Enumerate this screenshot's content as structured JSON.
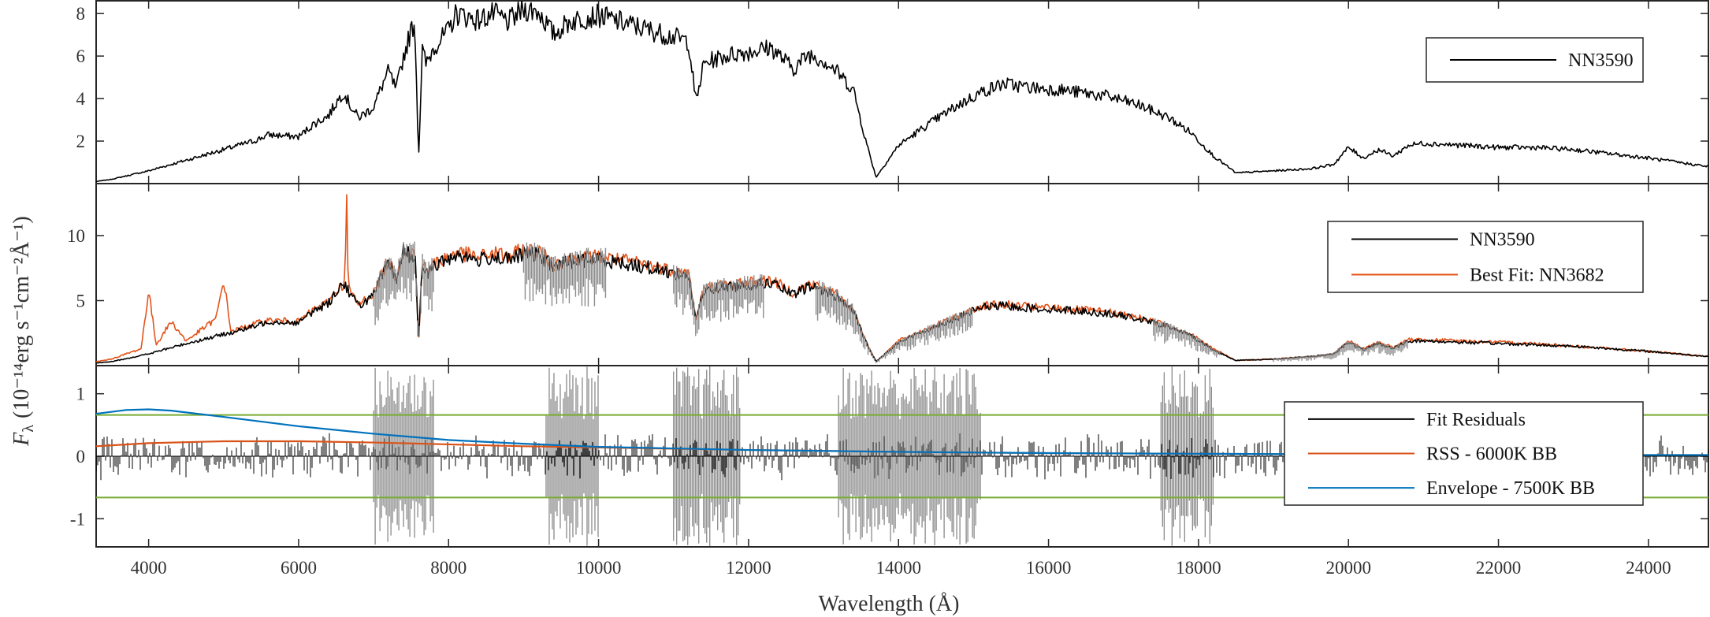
{
  "chart_data": {
    "type": "line",
    "xlabel": "Wavelength (Å)",
    "ylabel": "F",
    "ylabel_sub": "λ",
    "ylabel_units": "(10⁻¹⁴erg s⁻¹cm⁻²Å⁻¹)",
    "xlim": [
      3300,
      24800
    ],
    "x_ticks": [
      4000,
      6000,
      8000,
      10000,
      12000,
      14000,
      16000,
      18000,
      20000,
      22000,
      24000
    ],
    "grid": false,
    "panels": [
      {
        "id": "top",
        "ylim": [
          0,
          8.6
        ],
        "y_ticks": [
          2,
          4,
          6,
          8
        ],
        "legend_position": "top-right",
        "series": [
          {
            "name": "NN3590",
            "color": "#000000",
            "x": [
              3300,
              3500,
              4000,
              4500,
              5000,
              5400,
              5600,
              6000,
              6200,
              6400,
              6500,
              6600,
              6700,
              6800,
              7000,
              7100,
              7200,
              7300,
              7400,
              7500,
              7550,
              7600,
              7650,
              7700,
              7800,
              8000,
              8100,
              8200,
              8400,
              8600,
              8800,
              9000,
              9200,
              9400,
              9600,
              9800,
              10000,
              10400,
              10800,
              11000,
              11200,
              11300,
              11400,
              11500,
              11800,
              12000,
              12300,
              12600,
              12800,
              13000,
              13200,
              13400,
              13550,
              13700,
              14000,
              14400,
              14800,
              15100,
              15400,
              15800,
              16200,
              16800,
              17200,
              17600,
              17900,
              18200,
              18500,
              19000,
              19500,
              19800,
              20000,
              20200,
              20400,
              20600,
              20800,
              21000,
              21500,
              22000,
              22500,
              23000,
              23500,
              24000,
              24400,
              24800
            ],
            "y": [
              0.1,
              0.2,
              0.6,
              1.1,
              1.6,
              2.0,
              2.3,
              2.2,
              2.8,
              3.2,
              3.8,
              4.3,
              3.6,
              3.1,
              3.6,
              4.5,
              5.3,
              4.4,
              6.0,
              7.2,
              7.6,
              1.2,
              6.3,
              5.6,
              6.4,
              7.2,
              8.0,
              7.9,
              7.7,
              8.0,
              7.6,
              8.2,
              8.1,
              7.0,
              7.6,
              7.8,
              7.9,
              7.5,
              7.1,
              6.9,
              6.7,
              3.8,
              5.6,
              5.8,
              6.1,
              6.2,
              6.4,
              5.4,
              6.1,
              5.8,
              5.2,
              4.4,
              2.2,
              0.3,
              1.8,
              2.8,
              3.7,
              4.3,
              4.7,
              4.5,
              4.4,
              4.1,
              3.7,
              3.1,
              2.4,
              1.3,
              0.5,
              0.6,
              0.7,
              0.9,
              1.7,
              1.2,
              1.6,
              1.3,
              1.8,
              1.9,
              1.8,
              1.7,
              1.7,
              1.6,
              1.4,
              1.2,
              1.0,
              0.8
            ]
          }
        ]
      },
      {
        "id": "middle",
        "ylim": [
          0,
          14
        ],
        "y_ticks": [
          5,
          10
        ],
        "legend_position": "top-right",
        "series": [
          {
            "name": "NN3590",
            "color": "#000000",
            "x": [
              3300,
              3500,
              4000,
              4500,
              5000,
              5400,
              5600,
              6000,
              6200,
              6400,
              6500,
              6600,
              6700,
              6800,
              7000,
              7100,
              7200,
              7300,
              7400,
              7500,
              7550,
              7600,
              7650,
              7700,
              7800,
              8000,
              8100,
              8200,
              8400,
              8600,
              8800,
              9000,
              9200,
              9400,
              9600,
              9800,
              10000,
              10400,
              10800,
              11000,
              11200,
              11300,
              11400,
              11500,
              11800,
              12000,
              12300,
              12600,
              12800,
              13000,
              13200,
              13400,
              13550,
              13700,
              14000,
              14400,
              14800,
              15100,
              15400,
              15800,
              16200,
              16800,
              17200,
              17600,
              17900,
              18200,
              18500,
              19000,
              19500,
              19800,
              20000,
              20200,
              20400,
              20600,
              20800,
              21000,
              21500,
              22000,
              22500,
              23000,
              23500,
              24000,
              24400,
              24800
            ],
            "y": [
              0.2,
              0.3,
              0.9,
              1.7,
              2.4,
              3.0,
              3.4,
              3.3,
              4.2,
              4.8,
              5.7,
              6.4,
              5.4,
              4.6,
              5.4,
              6.7,
              7.9,
              6.6,
              8.9,
              8.4,
              8.7,
              1.8,
              7.9,
              7.0,
              7.6,
              8.2,
              8.6,
              8.4,
              8.1,
              8.4,
              8.1,
              8.6,
              8.5,
              7.6,
              8.0,
              8.1,
              8.2,
              7.8,
              7.4,
              7.1,
              6.9,
              3.5,
              5.6,
              5.9,
              6.1,
              6.2,
              6.4,
              5.4,
              6.1,
              5.8,
              5.2,
              4.2,
              2.0,
              0.3,
              1.8,
              2.8,
              3.7,
              4.5,
              4.6,
              4.4,
              4.3,
              4.0,
              3.6,
              3.0,
              2.3,
              1.2,
              0.4,
              0.5,
              0.7,
              0.9,
              1.8,
              1.2,
              1.7,
              1.3,
              1.9,
              1.9,
              1.8,
              1.7,
              1.6,
              1.5,
              1.3,
              1.1,
              0.9,
              0.7
            ]
          },
          {
            "name": "Best Fit: NN3682",
            "color": "#e3541b",
            "x": [
              3300,
              3500,
              3900,
              4000,
              4100,
              4300,
              4500,
              4900,
              5000,
              5100,
              5400,
              5600,
              6000,
              6200,
              6400,
              6500,
              6620,
              6640,
              6660,
              6700,
              6800,
              7000,
              7100,
              7200,
              7300,
              7400,
              7500,
              7550,
              7600,
              7650,
              7700,
              7800,
              8000,
              8100,
              8200,
              8400,
              8600,
              8800,
              9000,
              9200,
              9400,
              9600,
              9800,
              10000,
              10400,
              10800,
              11000,
              11200,
              11300,
              11400,
              11500,
              11800,
              12000,
              12300,
              12600,
              12800,
              13000,
              13200,
              13400,
              13550,
              13700,
              14000,
              14400,
              14800,
              15100,
              15400,
              15800,
              16200,
              16800,
              17200,
              17600,
              17900,
              18200,
              18500,
              19000,
              19500,
              19800,
              20000,
              20200,
              20400,
              20600,
              20800,
              21000,
              21500,
              22000,
              22500,
              23000,
              23500,
              24000,
              24400,
              24800
            ],
            "y": [
              0.3,
              0.5,
              1.3,
              5.8,
              1.6,
              3.4,
              1.9,
              3.6,
              6.6,
              2.6,
              3.2,
              3.5,
              3.4,
              4.3,
              4.9,
              5.8,
              6.4,
              13.8,
              6.3,
              5.5,
              4.7,
              5.6,
              6.9,
              8.1,
              6.8,
              9.1,
              8.6,
              8.9,
              1.9,
              8.1,
              7.2,
              7.8,
              8.4,
              8.8,
              8.6,
              8.3,
              8.7,
              8.4,
              8.9,
              8.8,
              7.8,
              8.2,
              8.3,
              8.4,
              8.0,
              7.6,
              7.3,
              7.1,
              3.6,
              5.8,
              6.1,
              6.3,
              6.4,
              6.6,
              5.6,
              6.3,
              6.0,
              5.4,
              4.3,
              2.1,
              0.3,
              1.9,
              2.9,
              3.8,
              4.6,
              4.7,
              4.5,
              4.4,
              4.1,
              3.7,
              3.1,
              2.4,
              1.3,
              0.4,
              0.5,
              0.7,
              0.9,
              1.9,
              1.3,
              1.8,
              1.4,
              2.0,
              2.0,
              1.9,
              1.8,
              1.7,
              1.5,
              1.3,
              1.1,
              0.9,
              0.7
            ]
          }
        ]
      },
      {
        "id": "bottom",
        "ylim": [
          -1.45,
          1.45
        ],
        "y_ticks": [
          -1,
          0,
          1
        ],
        "legend_position": "right",
        "threshold_lines": [
          0.66,
          -0.66
        ],
        "threshold_color": "#77ac30",
        "series": [
          {
            "name": "Fit Residuals",
            "color": "#000000",
            "x": [
              3300,
              4000,
              5000,
              6000,
              7000,
              8000,
              9000,
              10000,
              11000,
              12000,
              13000,
              14000,
              15000,
              16000,
              17000,
              18000,
              19000,
              20000,
              21000,
              22000,
              23000,
              24000,
              24800
            ],
            "y": [
              0.0,
              0.0,
              0.0,
              0.0,
              0.0,
              0.0,
              0.0,
              0.0,
              0.0,
              0.0,
              0.0,
              0.0,
              0.0,
              0.0,
              0.0,
              0.0,
              0.0,
              0.0,
              0.0,
              0.0,
              0.0,
              0.0,
              0.0
            ]
          },
          {
            "name": "RSS - 6000K BB",
            "color": "#d95319",
            "x": [
              3300,
              4000,
              5000,
              6000,
              7000,
              8000,
              9000,
              10000,
              12000,
              14000,
              16000,
              18000,
              20000,
              22000,
              24000,
              24800
            ],
            "y": [
              0.16,
              0.21,
              0.24,
              0.24,
              0.22,
              0.19,
              0.16,
              0.14,
              0.1,
              0.07,
              0.05,
              0.04,
              0.03,
              0.02,
              0.02,
              0.02
            ]
          },
          {
            "name": "Envelope - 7500K BB",
            "color": "#0072bd",
            "x": [
              3300,
              3700,
              4000,
              4300,
              5000,
              6000,
              7000,
              8000,
              9000,
              10000,
              12000,
              14000,
              16000,
              18000,
              20000,
              22000,
              24000,
              24800
            ],
            "y": [
              0.68,
              0.74,
              0.75,
              0.73,
              0.63,
              0.48,
              0.36,
              0.26,
              0.2,
              0.15,
              0.1,
              0.07,
              0.05,
              0.04,
              0.03,
              0.03,
              0.02,
              0.02
            ]
          }
        ]
      }
    ]
  }
}
